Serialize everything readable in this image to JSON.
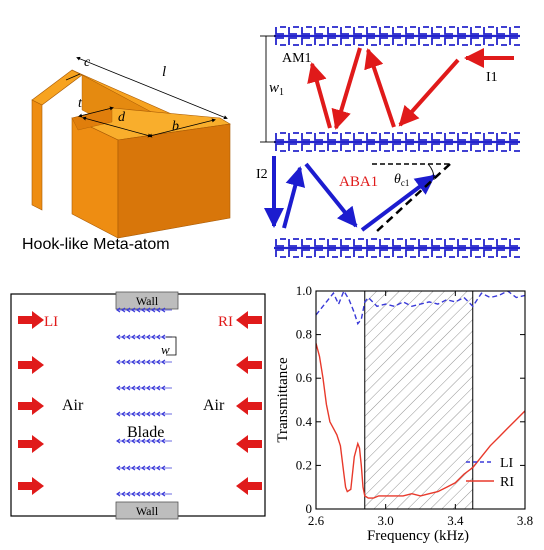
{
  "panel_a": {
    "caption": "Hook-like Meta-atom",
    "dims": {
      "c": "c",
      "l": "l",
      "t": "t",
      "d": "d",
      "b": "b"
    },
    "colors": {
      "top": "#F7A320",
      "front": "#EE8D12",
      "side": "#D8760A",
      "edge": "#A85A05"
    }
  },
  "panel_b": {
    "labels": {
      "am": "AM1",
      "w": "w",
      "w_sub": "1",
      "incident": "I1",
      "aba": "ABA1",
      "theta": "θ",
      "theta_sub": "c1",
      "i2": "I2"
    },
    "colors": {
      "red": "#E01A1A",
      "blue": "#1C1CCF",
      "atoms": "#2525CC"
    }
  },
  "panel_c": {
    "left_label": "LI",
    "right_label": "RI",
    "left_medium": "Air",
    "right_medium": "Air",
    "center_label": "Blade",
    "wall_top": "Wall",
    "wall_bottom": "Wall",
    "width_label": "w",
    "colors": {
      "arrow": "#E01A1A",
      "blade": "#3A3AD8",
      "wall": "#BDBDBD"
    }
  },
  "chart_data": {
    "type": "line",
    "xlabel": "Frequency (kHz)",
    "ylabel": "Transmittance",
    "xlim": [
      2.6,
      3.8
    ],
    "ylim": [
      0,
      1.0
    ],
    "xticks": [
      "2.6",
      "3.0",
      "3.4",
      "3.8"
    ],
    "yticks": [
      "0",
      "0.2",
      "0.4",
      "0.6",
      "0.8",
      "1.0"
    ],
    "shaded_band": [
      2.88,
      3.5
    ],
    "legend_placement": "bottom-right",
    "series": [
      {
        "name": "LI",
        "style": "dashed",
        "color": "#3A3AD8",
        "x": [
          2.6,
          2.63,
          2.66,
          2.7,
          2.73,
          2.76,
          2.79,
          2.82,
          2.84,
          2.86,
          2.88,
          2.9,
          2.95,
          3.0,
          3.05,
          3.1,
          3.15,
          3.2,
          3.25,
          3.3,
          3.35,
          3.4,
          3.45,
          3.5,
          3.55,
          3.6,
          3.65,
          3.7,
          3.75,
          3.8
        ],
        "y": [
          0.89,
          0.92,
          0.95,
          0.99,
          0.94,
          1.0,
          0.96,
          0.9,
          0.85,
          0.87,
          0.95,
          0.97,
          0.93,
          0.94,
          0.93,
          0.95,
          0.93,
          0.94,
          0.95,
          0.94,
          0.96,
          0.95,
          0.97,
          0.93,
          0.99,
          0.97,
          0.98,
          1.0,
          0.97,
          0.98
        ]
      },
      {
        "name": "RI",
        "style": "solid",
        "color": "#E8392B",
        "x": [
          2.6,
          2.62,
          2.64,
          2.66,
          2.68,
          2.7,
          2.72,
          2.74,
          2.76,
          2.77,
          2.78,
          2.8,
          2.82,
          2.84,
          2.85,
          2.86,
          2.87,
          2.88,
          2.9,
          2.93,
          2.96,
          3.0,
          3.05,
          3.1,
          3.15,
          3.2,
          3.25,
          3.3,
          3.35,
          3.4,
          3.45,
          3.5,
          3.55,
          3.6,
          3.65,
          3.7,
          3.75,
          3.8
        ],
        "y": [
          0.76,
          0.7,
          0.6,
          0.48,
          0.4,
          0.37,
          0.34,
          0.29,
          0.16,
          0.1,
          0.08,
          0.09,
          0.24,
          0.3,
          0.28,
          0.2,
          0.1,
          0.06,
          0.05,
          0.05,
          0.06,
          0.06,
          0.06,
          0.06,
          0.07,
          0.06,
          0.07,
          0.08,
          0.1,
          0.12,
          0.16,
          0.19,
          0.24,
          0.29,
          0.33,
          0.37,
          0.41,
          0.45
        ]
      }
    ]
  }
}
